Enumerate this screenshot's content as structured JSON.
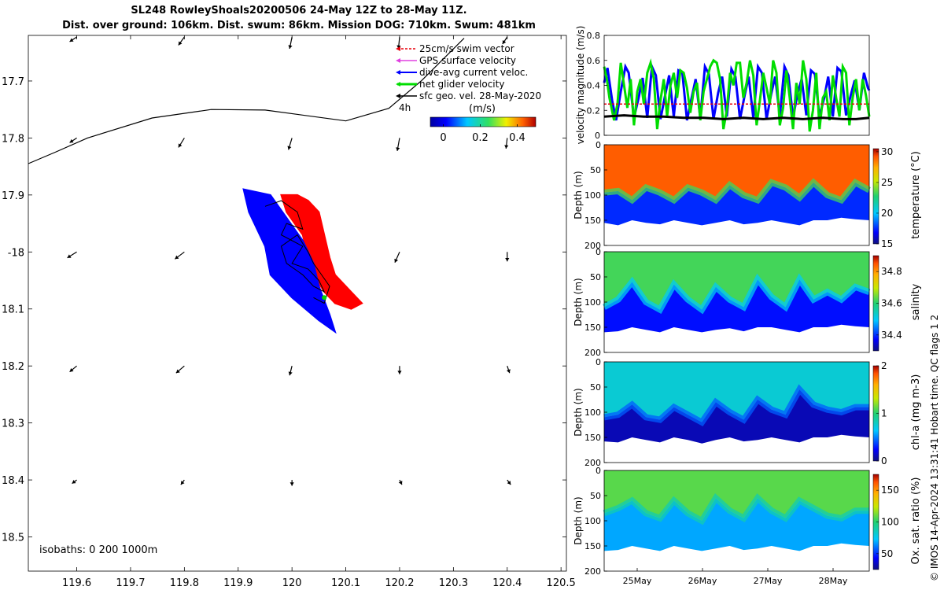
{
  "title": {
    "line1": "SL248 RowleyShoals20200506 24-May 12Z to 28-May 11Z.",
    "line2": "Dist. over ground: 106km. Dist. swum: 86km. Mission DOG: 710km. Swum: 481km"
  },
  "credit": "© IMOS 14-Apr-2024 13:31:41 Hobart time. QC flags 1  2",
  "colors": {
    "swim": "#e8000b",
    "gps": "#e040e0",
    "dive_avg": "#0000ff",
    "net_glider": "#00dd00",
    "sfc_geo": "#000000",
    "track_east": "#ff0000",
    "track_west": "#0000ff"
  },
  "chart_data": [
    {
      "type": "scatter",
      "x": [
        119.6,
        119.7,
        119.8,
        119.9,
        120,
        120.1,
        120.2,
        120.3,
        120.4,
        120.5
      ],
      "xticklabels": [
        "119.6",
        "119.7",
        "119.8",
        "119.9",
        "120",
        "120.1",
        "120.2",
        "120.3",
        "120.4",
        "120.5"
      ],
      "xlim": [
        119.51,
        120.51
      ],
      "yticks": [
        -17.7,
        -17.8,
        -17.9,
        -18.0,
        -18.1,
        -18.2,
        -18.3,
        -18.4,
        -18.5
      ],
      "yticklabels": [
        "17.7",
        "17.8",
        "17.9",
        "-18",
        "18.1",
        "18.2",
        "18.3",
        "18.4",
        "18.5"
      ],
      "ylim": [
        -18.56,
        -17.62
      ],
      "legend": {
        "position": "top-right",
        "entries": [
          "25cm/s swim vector",
          "GPS surface velocity",
          "dive-avg current veloc.",
          "net glider velocity",
          "sfc geo. vel. 28-May-2020"
        ],
        "duration_label": "4h"
      },
      "colorbar": {
        "label": "(m/s)",
        "ticks": [
          "0",
          "0.2",
          "0.4"
        ],
        "range": [
          -0.07,
          0.5
        ]
      },
      "annotation": "isobaths: 0   200  1000m",
      "isobath": [
        [
          119.51,
          -17.845
        ],
        [
          119.56,
          -17.825
        ],
        [
          119.62,
          -17.8
        ],
        [
          119.74,
          -17.765
        ],
        [
          119.85,
          -17.75
        ],
        [
          119.95,
          -17.751
        ],
        [
          120.1,
          -17.77
        ],
        [
          120.18,
          -17.748
        ],
        [
          120.24,
          -17.7
        ],
        [
          120.32,
          -17.625
        ]
      ],
      "sfc_geo_vectors": [
        {
          "lon": 119.6,
          "lat": -17.62,
          "u": -0.06,
          "v": -0.04
        },
        {
          "lon": 119.8,
          "lat": -17.62,
          "u": -0.05,
          "v": -0.07
        },
        {
          "lon": 120.0,
          "lat": -17.62,
          "u": -0.02,
          "v": -0.1
        },
        {
          "lon": 120.2,
          "lat": -17.62,
          "u": -0.01,
          "v": -0.1
        },
        {
          "lon": 120.4,
          "lat": -17.62,
          "u": -0.04,
          "v": -0.06
        },
        {
          "lon": 119.6,
          "lat": -17.8,
          "u": -0.06,
          "v": -0.04
        },
        {
          "lon": 119.8,
          "lat": -17.8,
          "u": -0.05,
          "v": -0.08
        },
        {
          "lon": 120.0,
          "lat": -17.8,
          "u": -0.03,
          "v": -0.1
        },
        {
          "lon": 120.2,
          "lat": -17.8,
          "u": -0.02,
          "v": -0.11
        },
        {
          "lon": 120.4,
          "lat": -17.8,
          "u": -0.01,
          "v": -0.09
        },
        {
          "lon": 119.6,
          "lat": -18.0,
          "u": -0.08,
          "v": -0.05
        },
        {
          "lon": 119.8,
          "lat": -18.0,
          "u": -0.08,
          "v": -0.06
        },
        {
          "lon": 120.2,
          "lat": -18.0,
          "u": -0.04,
          "v": -0.09
        },
        {
          "lon": 120.4,
          "lat": -18.0,
          "u": 0.0,
          "v": -0.08
        },
        {
          "lon": 119.6,
          "lat": -18.2,
          "u": -0.06,
          "v": -0.05
        },
        {
          "lon": 119.8,
          "lat": -18.2,
          "u": -0.07,
          "v": -0.06
        },
        {
          "lon": 120.0,
          "lat": -18.2,
          "u": -0.02,
          "v": -0.08
        },
        {
          "lon": 120.2,
          "lat": -18.2,
          "u": 0.0,
          "v": -0.07
        },
        {
          "lon": 120.4,
          "lat": -18.2,
          "u": 0.02,
          "v": -0.06
        },
        {
          "lon": 119.6,
          "lat": -18.4,
          "u": -0.04,
          "v": -0.03
        },
        {
          "lon": 119.8,
          "lat": -18.4,
          "u": -0.03,
          "v": -0.04
        },
        {
          "lon": 120.0,
          "lat": -18.4,
          "u": 0.0,
          "v": -0.05
        },
        {
          "lon": 120.2,
          "lat": -18.4,
          "u": 0.02,
          "v": -0.04
        },
        {
          "lon": 120.4,
          "lat": -18.4,
          "u": 0.03,
          "v": -0.04
        }
      ],
      "track_east_patch": [
        [
          120.01,
          -17.9
        ],
        [
          120.03,
          -17.91
        ],
        [
          120.05,
          -17.93
        ],
        [
          120.06,
          -17.97
        ],
        [
          120.07,
          -18.01
        ],
        [
          120.08,
          -18.04
        ],
        [
          120.11,
          -18.07
        ],
        [
          120.13,
          -18.09
        ],
        [
          120.11,
          -18.1
        ],
        [
          120.08,
          -18.09
        ],
        [
          120.06,
          -18.07
        ],
        [
          120.04,
          -18.04
        ],
        [
          120.03,
          -18.01
        ],
        [
          120.02,
          -17.97
        ],
        [
          119.99,
          -17.93
        ],
        [
          119.98,
          -17.9
        ]
      ],
      "track_west_patch": [
        [
          119.91,
          -17.89
        ],
        [
          119.96,
          -17.9
        ],
        [
          119.99,
          -17.94
        ],
        [
          120.02,
          -17.98
        ],
        [
          120.04,
          -18.02
        ],
        [
          120.05,
          -18.06
        ],
        [
          120.07,
          -18.11
        ],
        [
          120.08,
          -18.14
        ],
        [
          120.05,
          -18.12
        ],
        [
          120.0,
          -18.08
        ],
        [
          119.96,
          -18.04
        ],
        [
          119.95,
          -17.99
        ],
        [
          119.93,
          -17.95
        ],
        [
          119.92,
          -17.93
        ]
      ],
      "glider_track": [
        [
          119.95,
          -17.92
        ],
        [
          119.98,
          -17.91
        ],
        [
          120.01,
          -17.93
        ],
        [
          120.02,
          -17.96
        ],
        [
          119.99,
          -17.95
        ],
        [
          119.98,
          -17.97
        ],
        [
          120.02,
          -17.99
        ],
        [
          120.0,
          -18.02
        ],
        [
          120.03,
          -18.03
        ],
        [
          120.05,
          -18.05
        ],
        [
          120.06,
          -18.07
        ],
        [
          120.04,
          -18.06
        ],
        [
          120.02,
          -18.04
        ],
        [
          119.99,
          -18.02
        ],
        [
          119.98,
          -17.99
        ],
        [
          120.01,
          -17.97
        ],
        [
          120.03,
          -18.0
        ],
        [
          120.04,
          -18.02
        ],
        [
          120.07,
          -18.06
        ],
        [
          120.06,
          -18.09
        ],
        [
          120.04,
          -18.08
        ]
      ],
      "net_velocity_point": [
        120.06,
        -18.08
      ]
    },
    {
      "type": "line",
      "ylabel": "velocity magnitude (m/s)",
      "ylim": [
        0,
        0.8
      ],
      "yticks": [
        0,
        0.2,
        0.4,
        0.6,
        0.8
      ],
      "xlim": [
        0,
        4
      ],
      "series": [
        {
          "color": "#0000ff",
          "x": [
            0,
            0.05,
            0.12,
            0.18,
            0.25,
            0.32,
            0.37,
            0.45,
            0.52,
            0.58,
            0.65,
            0.72,
            0.78,
            0.85,
            0.92,
            0.98,
            1.05,
            1.12,
            1.18,
            1.25,
            1.32,
            1.38,
            1.45,
            1.52,
            1.58,
            1.65,
            1.72,
            1.78,
            1.85,
            1.92,
            1.98,
            2.05,
            2.12,
            2.18,
            2.25,
            2.32,
            2.38,
            2.45,
            2.52,
            2.58,
            2.65,
            2.72,
            2.78,
            2.85,
            2.92,
            2.98,
            3.05,
            3.12,
            3.18,
            3.25,
            3.32,
            3.38,
            3.45,
            3.52,
            3.58,
            3.65,
            3.72,
            3.78,
            3.85,
            3.92,
            3.98,
            4.0
          ],
          "y": [
            0.42,
            0.54,
            0.28,
            0.12,
            0.35,
            0.55,
            0.5,
            0.14,
            0.3,
            0.46,
            0.14,
            0.55,
            0.48,
            0.13,
            0.32,
            0.48,
            0.15,
            0.52,
            0.5,
            0.12,
            0.3,
            0.45,
            0.14,
            0.55,
            0.49,
            0.13,
            0.34,
            0.47,
            0.15,
            0.53,
            0.47,
            0.13,
            0.32,
            0.47,
            0.14,
            0.55,
            0.5,
            0.13,
            0.33,
            0.47,
            0.15,
            0.55,
            0.48,
            0.14,
            0.34,
            0.45,
            0.16,
            0.52,
            0.49,
            0.15,
            0.3,
            0.47,
            0.15,
            0.54,
            0.51,
            0.16,
            0.32,
            0.44,
            0.2,
            0.5,
            0.38,
            0.36
          ]
        },
        {
          "color": "#00dd00",
          "x": [
            0,
            0.04,
            0.08,
            0.15,
            0.2,
            0.25,
            0.3,
            0.35,
            0.4,
            0.45,
            0.5,
            0.55,
            0.6,
            0.65,
            0.7,
            0.75,
            0.8,
            0.85,
            0.9,
            0.95,
            1.0,
            1.05,
            1.1,
            1.15,
            1.2,
            1.25,
            1.3,
            1.35,
            1.4,
            1.45,
            1.5,
            1.55,
            1.6,
            1.65,
            1.7,
            1.75,
            1.8,
            1.85,
            1.9,
            1.95,
            2.0,
            2.05,
            2.1,
            2.15,
            2.2,
            2.25,
            2.3,
            2.35,
            2.4,
            2.45,
            2.5,
            2.55,
            2.6,
            2.65,
            2.7,
            2.75,
            2.8,
            2.85,
            2.9,
            2.95,
            3.0,
            3.05,
            3.1,
            3.15,
            3.2,
            3.25,
            3.3,
            3.35,
            3.4,
            3.45,
            3.5,
            3.55,
            3.6,
            3.65,
            3.7,
            3.75,
            3.8,
            3.85,
            3.9,
            3.95,
            4.0
          ],
          "y": [
            0.55,
            0.45,
            0.3,
            0.12,
            0.25,
            0.58,
            0.4,
            0.22,
            0.45,
            0.08,
            0.35,
            0.45,
            0.25,
            0.5,
            0.58,
            0.45,
            0.05,
            0.28,
            0.45,
            0.15,
            0.4,
            0.5,
            0.3,
            0.52,
            0.5,
            0.38,
            0.18,
            0.35,
            0.42,
            0.12,
            0.35,
            0.45,
            0.55,
            0.6,
            0.58,
            0.45,
            0.05,
            0.2,
            0.5,
            0.4,
            0.58,
            0.58,
            0.3,
            0.42,
            0.6,
            0.48,
            0.08,
            0.28,
            0.5,
            0.38,
            0.25,
            0.6,
            0.5,
            0.08,
            0.22,
            0.52,
            0.3,
            0.05,
            0.42,
            0.25,
            0.6,
            0.45,
            0.03,
            0.2,
            0.5,
            0.05,
            0.3,
            0.35,
            0.12,
            0.48,
            0.3,
            0.15,
            0.55,
            0.5,
            0.08,
            0.3,
            0.45,
            0.2,
            0.45,
            0.32,
            0.15
          ]
        },
        {
          "color": "#000000",
          "x": [
            0,
            0.3,
            0.6,
            0.9,
            1.2,
            1.5,
            1.8,
            2.1,
            2.4,
            2.7,
            3.0,
            3.3,
            3.6,
            3.8,
            4.0
          ],
          "y": [
            0.15,
            0.16,
            0.15,
            0.15,
            0.14,
            0.14,
            0.13,
            0.14,
            0.13,
            0.14,
            0.13,
            0.14,
            0.13,
            0.13,
            0.14
          ]
        },
        {
          "color": "#e8000b",
          "x": [
            0,
            4
          ],
          "y": [
            0.25,
            0.25
          ]
        }
      ]
    },
    {
      "type": "heatmap",
      "variable": "temperature",
      "ylabel": "Depth (m)",
      "ylim": [
        0,
        200
      ],
      "yticks": [
        0,
        50,
        100,
        150,
        200
      ],
      "colorbar": {
        "label": "temperature (°C)",
        "range": [
          15,
          30.5
        ],
        "ticks": [
          15,
          20,
          25,
          30
        ]
      },
      "surface_value": 29.0,
      "deep_value": 17.5,
      "max_depth": [
        155,
        160,
        150,
        155,
        158,
        150,
        155,
        160,
        155,
        150,
        158,
        155,
        150,
        155,
        160,
        150,
        150,
        145,
        148,
        150
      ],
      "transition_depth": [
        95,
        92,
        110,
        85,
        95,
        110,
        85,
        95,
        110,
        80,
        100,
        110,
        75,
        85,
        105,
        75,
        100,
        110,
        75,
        90
      ]
    },
    {
      "type": "heatmap",
      "variable": "salinity",
      "ylabel": "Depth (m)",
      "ylim": [
        0,
        200
      ],
      "yticks": [
        0,
        50,
        100,
        150,
        200
      ],
      "colorbar": {
        "label": "salinity",
        "range": [
          34.3,
          34.9
        ],
        "ticks": [
          34.4,
          34.6,
          34.8
        ]
      },
      "surface_value": 34.62,
      "deep_value": 34.38,
      "max_depth": [
        160,
        158,
        150,
        155,
        160,
        150,
        155,
        160,
        155,
        152,
        158,
        150,
        150,
        155,
        160,
        150,
        150,
        145,
        148,
        150
      ],
      "transition_depth": [
        110,
        95,
        60,
        100,
        115,
        65,
        95,
        115,
        70,
        95,
        110,
        55,
        90,
        110,
        55,
        95,
        80,
        95,
        70,
        80
      ]
    },
    {
      "type": "heatmap",
      "variable": "chl-a",
      "ylabel": "Depth (m)",
      "ylim": [
        0,
        200
      ],
      "yticks": [
        0,
        50,
        100,
        150,
        200
      ],
      "colorbar": {
        "label": "chl-a (mg m-3)",
        "range": [
          0,
          2
        ],
        "ticks": [
          0,
          1,
          2
        ]
      },
      "surface_value": 0.75,
      "deep_value": 0.1,
      "max_depth": [
        158,
        160,
        150,
        155,
        160,
        150,
        155,
        162,
        155,
        150,
        158,
        155,
        150,
        155,
        160,
        150,
        150,
        145,
        148,
        150
      ],
      "transition_depth": [
        110,
        105,
        85,
        110,
        115,
        90,
        105,
        120,
        80,
        100,
        115,
        75,
        95,
        105,
        55,
        85,
        95,
        100,
        90,
        90
      ]
    },
    {
      "type": "heatmap",
      "variable": "oxygen saturation",
      "ylabel": "Depth (m)",
      "ylim": [
        0,
        200
      ],
      "yticks": [
        0,
        50,
        100,
        150,
        200
      ],
      "colorbar": {
        "label": "Ox. sat. ratio (%)",
        "range": [
          25,
          175
        ],
        "ticks": [
          50,
          100,
          150
        ]
      },
      "xticklabels": [
        "25May",
        "26May",
        "27May",
        "28May"
      ],
      "surface_value": 108,
      "deep_value": 68,
      "max_depth": [
        160,
        158,
        150,
        155,
        160,
        150,
        155,
        160,
        155,
        150,
        158,
        155,
        150,
        155,
        160,
        150,
        150,
        145,
        148,
        150
      ],
      "transition_depth": [
        85,
        75,
        60,
        85,
        95,
        60,
        85,
        100,
        55,
        80,
        95,
        55,
        80,
        95,
        60,
        75,
        90,
        95,
        80,
        80
      ]
    }
  ]
}
